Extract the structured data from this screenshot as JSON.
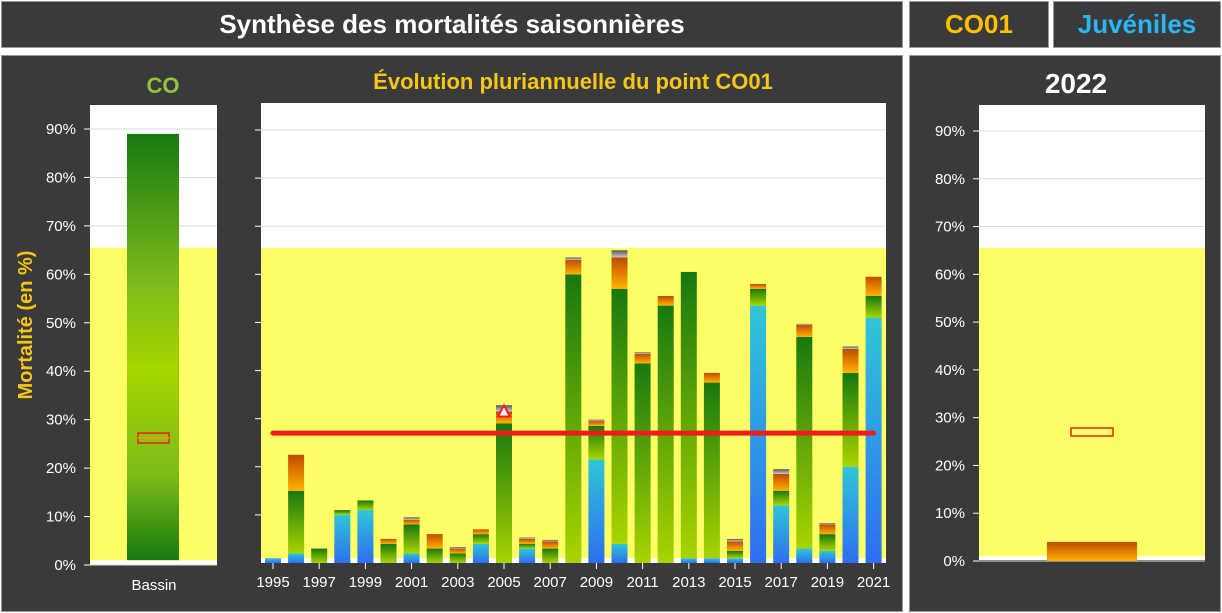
{
  "header": {
    "title": "Synthèse des mortalités saisonnières",
    "site": "CO01",
    "category": "Juvéniles"
  },
  "colors": {
    "panel": "#3a3a3a",
    "title_yellow": "#f5c518",
    "site_yellow": "#ffc000",
    "cat_blue": "#29b6f6",
    "co_green": "#8dc63f",
    "zone_yellow": "#ffff66",
    "ref_line": "#ee1c1c"
  },
  "left_panel": {
    "title": "CO",
    "ylabel": "Mortalité (en %)",
    "xlabel": "Bassin"
  },
  "middle_panel": {
    "title": "Évolution pluriannuelle du point CO01"
  },
  "right_panel": {
    "title": "2022"
  },
  "chart_data": [
    {
      "type": "bar",
      "id": "bassin",
      "title": "CO",
      "ylabel": "Mortalité (en %)",
      "categories": [
        "Bassin"
      ],
      "range": [
        1,
        89
      ],
      "marker": 26,
      "ylim": [
        0,
        90
      ],
      "yticks": [
        "0%",
        "10%",
        "20%",
        "30%",
        "40%",
        "50%",
        "60%",
        "70%",
        "80%",
        "90%"
      ],
      "zone": [
        1,
        65.5
      ]
    },
    {
      "type": "bar",
      "id": "evolution",
      "title": "Évolution pluriannuelle du point CO01",
      "stacked": true,
      "x": [
        1995,
        1996,
        1997,
        1998,
        1999,
        2000,
        2001,
        2002,
        2003,
        2004,
        2005,
        2006,
        2007,
        2008,
        2009,
        2010,
        2011,
        2012,
        2013,
        2014,
        2015,
        2016,
        2017,
        2018,
        2019,
        2020,
        2021
      ],
      "xticks": [
        "1995",
        "1997",
        "1999",
        "2001",
        "2003",
        "2005",
        "2007",
        "2009",
        "2011",
        "2013",
        "2015",
        "2017",
        "2019",
        "2021"
      ],
      "series": [
        {
          "values": [
            1,
            2,
            0,
            10,
            11,
            0,
            2,
            0,
            0,
            4,
            0,
            3,
            0,
            0,
            21.5,
            4,
            0,
            0,
            1,
            1,
            1,
            53.5,
            12,
            3,
            2.5,
            20,
            51
          ]
        },
        {
          "values": [
            0,
            13,
            3,
            1,
            2,
            4,
            6,
            3,
            2,
            2,
            29,
            1,
            3,
            60,
            7,
            53,
            41.5,
            53.5,
            59.5,
            36.5,
            1.5,
            3.5,
            3,
            44,
            3.5,
            19.5,
            4.5
          ]
        },
        {
          "values": [
            0,
            7.5,
            0,
            0,
            0,
            1,
            1,
            3,
            1,
            1,
            2.5,
            1,
            1.5,
            3,
            1,
            6.5,
            2,
            2,
            0,
            2,
            2,
            1,
            3.5,
            2.5,
            2,
            5,
            4
          ]
        },
        {
          "values": [
            0,
            0,
            0,
            0,
            0,
            0,
            0.5,
            0,
            0.3,
            0,
            1.3,
            0.3,
            0.3,
            0.5,
            0.3,
            1.5,
            0.3,
            0,
            0,
            0,
            0.5,
            0,
            1,
            0.2,
            0.3,
            0.5,
            0
          ]
        }
      ],
      "totals": [
        1,
        22.5,
        3,
        11,
        13,
        5,
        9.5,
        6,
        3.3,
        7,
        32.8,
        5.3,
        4.8,
        63.5,
        29.8,
        65,
        43.8,
        55.5,
        60.5,
        39.5,
        5,
        58,
        19.5,
        49.7,
        8.3,
        45,
        59.5
      ],
      "reference": 27,
      "highlight": {
        "x": 2005,
        "y": 31.5
      },
      "ylim": [
        0,
        95
      ],
      "zone": [
        1,
        65.5
      ]
    },
    {
      "type": "bar",
      "id": "year2022",
      "title": "2022",
      "categories": [
        "2022"
      ],
      "values": [
        4
      ],
      "marker": 27,
      "ylim": [
        0,
        95
      ],
      "yticks": [
        "0%",
        "10%",
        "20%",
        "30%",
        "40%",
        "50%",
        "60%",
        "70%",
        "80%",
        "90%"
      ],
      "zone": [
        1,
        65.5
      ]
    }
  ]
}
